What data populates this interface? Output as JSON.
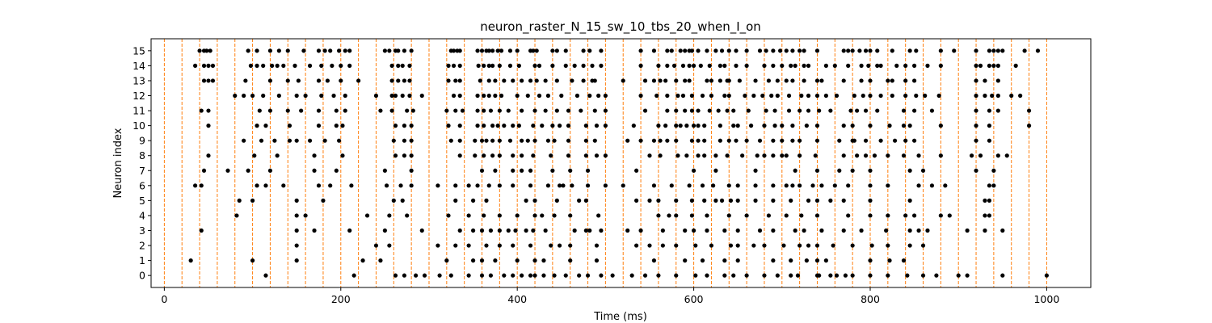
{
  "chart_data": {
    "type": "scatter",
    "title": "neuron_raster_N_15_sw_10_tbs_20_when_I_on",
    "xlabel": "Time (ms)",
    "ylabel": "Neuron index",
    "xlim": [
      -15,
      1050
    ],
    "ylim": [
      -0.8,
      15.8
    ],
    "xticks": [
      0,
      200,
      400,
      600,
      800,
      1000
    ],
    "yticks": [
      0,
      1,
      2,
      3,
      4,
      5,
      6,
      7,
      8,
      9,
      10,
      11,
      12,
      13,
      14,
      15
    ],
    "grid": false,
    "marker_color": "#000000",
    "line_color": "#ff7f0e",
    "vlines": [
      0,
      20,
      40,
      60,
      80,
      100,
      120,
      140,
      160,
      180,
      200,
      220,
      240,
      260,
      280,
      300,
      320,
      340,
      360,
      380,
      400,
      420,
      440,
      460,
      480,
      500,
      520,
      540,
      560,
      580,
      600,
      620,
      640,
      660,
      680,
      700,
      720,
      740,
      760,
      780,
      800,
      820,
      840,
      860,
      880,
      900,
      920,
      940,
      960,
      980,
      1000
    ],
    "spikes": [
      {
        "neuron": 15,
        "times": [
          40,
          45,
          48,
          52,
          95,
          105,
          120,
          130,
          140,
          158,
          175,
          182,
          188,
          198,
          205,
          210,
          250,
          255,
          262,
          265,
          272,
          280,
          325,
          328,
          332,
          335,
          355,
          360,
          365,
          368,
          372,
          378,
          382,
          392,
          400,
          415,
          418,
          422,
          440,
          445,
          455,
          475,
          482,
          495,
          540,
          555,
          570,
          575,
          585,
          590,
          595,
          598,
          605,
          615,
          625,
          632,
          640,
          648,
          660,
          675,
          682,
          690,
          698,
          705,
          712,
          720,
          725,
          740,
          770,
          775,
          780,
          788,
          795,
          800,
          808,
          825,
          845,
          852,
          880,
          895,
          920,
          935,
          940,
          945,
          950,
          975,
          990
        ]
      },
      {
        "neuron": 14,
        "times": [
          35,
          45,
          50,
          55,
          98,
          105,
          112,
          122,
          128,
          135,
          148,
          165,
          178,
          190,
          200,
          210,
          258,
          265,
          270,
          278,
          322,
          328,
          335,
          356,
          362,
          368,
          372,
          380,
          392,
          402,
          420,
          425,
          440,
          455,
          465,
          475,
          485,
          495,
          540,
          560,
          570,
          578,
          588,
          595,
          600,
          608,
          618,
          630,
          635,
          648,
          660,
          680,
          690,
          700,
          710,
          715,
          725,
          730,
          750,
          760,
          775,
          790,
          798,
          808,
          812,
          830,
          840,
          850,
          865,
          880,
          920,
          925,
          935,
          940,
          945,
          965
        ]
      },
      {
        "neuron": 13,
        "times": [
          45,
          50,
          55,
          92,
          120,
          140,
          152,
          175,
          185,
          200,
          220,
          258,
          265,
          272,
          278,
          322,
          330,
          335,
          358,
          368,
          375,
          385,
          395,
          405,
          415,
          422,
          432,
          445,
          462,
          475,
          485,
          488,
          520,
          545,
          555,
          562,
          568,
          580,
          590,
          595,
          615,
          620,
          630,
          638,
          640,
          652,
          670,
          685,
          695,
          705,
          712,
          725,
          740,
          745,
          770,
          790,
          800,
          820,
          825,
          840,
          850,
          920,
          930,
          945
        ]
      },
      {
        "neuron": 12,
        "times": [
          80,
          90,
          100,
          112,
          130,
          150,
          160,
          178,
          192,
          205,
          240,
          258,
          262,
          270,
          278,
          292,
          328,
          335,
          355,
          362,
          368,
          375,
          382,
          400,
          412,
          425,
          435,
          450,
          468,
          482,
          492,
          500,
          540,
          558,
          570,
          582,
          588,
          598,
          610,
          620,
          635,
          640,
          658,
          668,
          678,
          688,
          695,
          708,
          722,
          730,
          740,
          750,
          762,
          782,
          792,
          800,
          812,
          825,
          840,
          852,
          862,
          878,
          920,
          930,
          938,
          945,
          960,
          970
        ]
      },
      {
        "neuron": 11,
        "times": [
          42,
          50,
          108,
          120,
          140,
          155,
          175,
          195,
          205,
          245,
          258,
          275,
          282,
          320,
          330,
          338,
          355,
          362,
          370,
          380,
          390,
          405,
          420,
          432,
          445,
          458,
          472,
          488,
          500,
          545,
          570,
          580,
          590,
          598,
          605,
          618,
          628,
          638,
          645,
          662,
          682,
          692,
          708,
          720,
          730,
          742,
          755,
          778,
          785,
          795,
          808,
          838,
          850,
          870,
          920,
          935,
          945,
          980
        ]
      },
      {
        "neuron": 10,
        "times": [
          50,
          105,
          115,
          142,
          175,
          195,
          202,
          262,
          272,
          280,
          322,
          335,
          355,
          362,
          372,
          378,
          385,
          395,
          402,
          418,
          428,
          440,
          448,
          458,
          478,
          490,
          500,
          532,
          560,
          568,
          580,
          585,
          592,
          600,
          605,
          612,
          630,
          645,
          650,
          665,
          680,
          692,
          700,
          712,
          728,
          740,
          770,
          780,
          800,
          822,
          838,
          845,
          880,
          920,
          935,
          980
        ]
      },
      {
        "neuron": 9,
        "times": [
          90,
          110,
          125,
          142,
          150,
          165,
          182,
          198,
          260,
          272,
          280,
          325,
          335,
          352,
          360,
          365,
          372,
          380,
          392,
          405,
          412,
          420,
          435,
          442,
          458,
          478,
          488,
          525,
          540,
          555,
          562,
          570,
          580,
          598,
          605,
          612,
          630,
          640,
          648,
          660,
          675,
          690,
          700,
          712,
          720,
          740,
          765,
          780,
          782,
          795,
          812,
          828,
          840,
          850,
          920,
          935
        ]
      },
      {
        "neuron": 8,
        "times": [
          50,
          102,
          128,
          170,
          202,
          262,
          272,
          280,
          335,
          352,
          362,
          372,
          380,
          395,
          405,
          418,
          438,
          458,
          478,
          490,
          500,
          550,
          562,
          582,
          592,
          605,
          612,
          625,
          638,
          655,
          672,
          680,
          690,
          700,
          705,
          720,
          738,
          770,
          785,
          795,
          805,
          820,
          838,
          855,
          880,
          915,
          925,
          945,
          955
        ]
      },
      {
        "neuron": 7,
        "times": [
          45,
          72,
          95,
          120,
          170,
          195,
          250,
          280,
          360,
          375,
          395,
          405,
          415,
          440,
          460,
          480,
          535,
          600,
          625,
          670,
          715,
          740,
          765,
          780,
          800,
          845,
          860,
          920,
          940
        ]
      },
      {
        "neuron": 6,
        "times": [
          35,
          42,
          105,
          115,
          135,
          175,
          188,
          212,
          252,
          268,
          280,
          310,
          330,
          345,
          355,
          368,
          380,
          395,
          415,
          435,
          448,
          452,
          462,
          480,
          500,
          520,
          555,
          575,
          595,
          610,
          622,
          640,
          650,
          670,
          690,
          705,
          712,
          720,
          735,
          745,
          760,
          775,
          800,
          820,
          855,
          870,
          885,
          935,
          940
        ]
      },
      {
        "neuron": 5,
        "times": [
          85,
          100,
          150,
          180,
          260,
          270,
          330,
          350,
          365,
          410,
          420,
          445,
          470,
          478,
          535,
          550,
          560,
          580,
          598,
          612,
          625,
          632,
          642,
          650,
          670,
          690,
          710,
          730,
          740,
          755,
          770,
          800,
          845,
          930,
          935
        ]
      },
      {
        "neuron": 4,
        "times": [
          82,
          150,
          160,
          230,
          255,
          275,
          322,
          345,
          362,
          380,
          400,
          420,
          428,
          442,
          460,
          492,
          560,
          572,
          580,
          598,
          615,
          640,
          660,
          685,
          705,
          722,
          740,
          775,
          800,
          820,
          840,
          850,
          880,
          890,
          930,
          935
        ]
      },
      {
        "neuron": 3,
        "times": [
          42,
          150,
          170,
          210,
          250,
          292,
          335,
          350,
          360,
          370,
          380,
          390,
          398,
          410,
          418,
          432,
          465,
          478,
          482,
          495,
          525,
          540,
          565,
          590,
          600,
          615,
          635,
          650,
          675,
          690,
          715,
          725,
          745,
          770,
          790,
          818,
          845,
          855,
          865,
          910,
          930,
          950
        ]
      },
      {
        "neuron": 2,
        "times": [
          150,
          240,
          255,
          310,
          330,
          345,
          365,
          380,
          395,
          415,
          438,
          448,
          460,
          490,
          535,
          550,
          565,
          580,
          602,
          620,
          642,
          650,
          668,
          680,
          702,
          720,
          730,
          740,
          758,
          780,
          802,
          820,
          845,
          860
        ]
      },
      {
        "neuron": 1,
        "times": [
          30,
          100,
          150,
          225,
          245,
          320,
          350,
          360,
          375,
          400,
          420,
          430,
          460,
          490,
          555,
          590,
          610,
          635,
          650,
          690,
          710,
          728,
          740,
          750,
          800,
          822,
          838
        ]
      },
      {
        "neuron": 0,
        "times": [
          115,
          215,
          262,
          272,
          285,
          295,
          312,
          325,
          345,
          360,
          370,
          385,
          395,
          405,
          415,
          420,
          430,
          442,
          455,
          470,
          480,
          495,
          508,
          530,
          545,
          560,
          580,
          602,
          615,
          635,
          645,
          660,
          680,
          695,
          710,
          718,
          740,
          742,
          755,
          762,
          772,
          780,
          800,
          820,
          842,
          860,
          875,
          900,
          910,
          950,
          1000
        ]
      }
    ]
  }
}
